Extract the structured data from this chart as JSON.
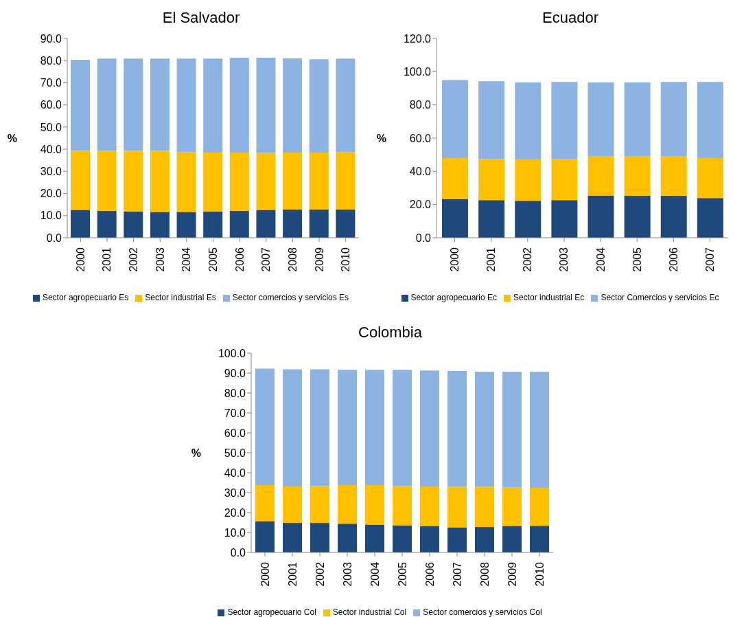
{
  "chart_data": [
    {
      "type": "bar",
      "title": "El Salvador",
      "ylabel": "%",
      "stacked": true,
      "legend": "bottom",
      "categories": [
        "2000",
        "2001",
        "2002",
        "2003",
        "2004",
        "2005",
        "2006",
        "2007",
        "2008",
        "2009",
        "2010"
      ],
      "ylim": [
        0,
        90
      ],
      "yticks": [
        {
          "value": 0,
          "label": "0.0"
        },
        {
          "value": 10,
          "label": "10.0"
        },
        {
          "value": 20,
          "label": "20.0"
        },
        {
          "value": 30,
          "label": "30.0"
        },
        {
          "value": 40,
          "label": "40.0"
        },
        {
          "value": 50,
          "label": "50.0"
        },
        {
          "value": 60,
          "label": "60.0"
        },
        {
          "value": 70,
          "label": "70.0"
        },
        {
          "value": 80,
          "label": "80.0"
        },
        {
          "value": 90,
          "label": "90.0"
        }
      ],
      "series": [
        {
          "name": "Sector agropecuario  Es",
          "color": "#1f497d",
          "values": [
            12.6,
            12.2,
            11.8,
            11.6,
            11.6,
            11.8,
            12.2,
            12.6,
            12.8,
            12.8,
            12.8
          ]
        },
        {
          "name": "Sector industrial Es",
          "color": "#ffc000",
          "values": [
            26.7,
            27.1,
            27.5,
            27.7,
            27.0,
            26.7,
            26.3,
            25.7,
            25.7,
            25.7,
            25.8
          ]
        },
        {
          "name": "Sector comercios y servicios Es",
          "color": "#8db3e2",
          "values": [
            41.1,
            41.6,
            41.6,
            41.6,
            42.3,
            42.4,
            42.8,
            43.0,
            42.5,
            42.1,
            42.3
          ]
        }
      ]
    },
    {
      "type": "bar",
      "title": "Ecuador",
      "ylabel": "%",
      "stacked": true,
      "legend": "bottom",
      "categories": [
        "2000",
        "2001",
        "2002",
        "2003",
        "2004",
        "2005",
        "2006",
        "2007"
      ],
      "ylim": [
        0,
        120
      ],
      "yticks": [
        {
          "value": 0,
          "label": "0.0"
        },
        {
          "value": 20,
          "label": "20.0"
        },
        {
          "value": 40,
          "label": "40.0"
        },
        {
          "value": 60,
          "label": "60.0"
        },
        {
          "value": 80,
          "label": "80.0"
        },
        {
          "value": 100,
          "label": "100.0"
        },
        {
          "value": 120,
          "label": "120.0"
        }
      ],
      "series": [
        {
          "name": "Sector agropecuario  Ec",
          "color": "#1f497d",
          "values": [
            23.2,
            22.7,
            22.2,
            22.7,
            25.5,
            25.3,
            25.3,
            23.9
          ]
        },
        {
          "name": "Sector industrial Ec",
          "color": "#ffc000",
          "values": [
            24.8,
            24.8,
            25.0,
            24.8,
            23.7,
            23.9,
            23.9,
            24.1
          ]
        },
        {
          "name": "Sector Comercios y servicios Ec",
          "color": "#8db3e2",
          "values": [
            47.0,
            46.7,
            46.3,
            46.3,
            44.3,
            44.3,
            44.6,
            45.8
          ]
        }
      ]
    },
    {
      "type": "bar",
      "title": "Colombia",
      "ylabel": "%",
      "stacked": true,
      "legend": "bottom",
      "categories": [
        "2000",
        "2001",
        "2002",
        "2003",
        "2004",
        "2005",
        "2006",
        "2007",
        "2008",
        "2009",
        "2010"
      ],
      "ylim": [
        0,
        100
      ],
      "yticks": [
        {
          "value": 0,
          "label": "0.0"
        },
        {
          "value": 10,
          "label": "10.0"
        },
        {
          "value": 20,
          "label": "20.0"
        },
        {
          "value": 30,
          "label": "30.0"
        },
        {
          "value": 40,
          "label": "40.0"
        },
        {
          "value": 50,
          "label": "50.0"
        },
        {
          "value": 60,
          "label": "60.0"
        },
        {
          "value": 70,
          "label": "70.0"
        },
        {
          "value": 80,
          "label": "80.0"
        },
        {
          "value": 90,
          "label": "90.0"
        },
        {
          "value": 100,
          "label": "100.0"
        }
      ],
      "series": [
        {
          "name": "Sector agropecuario  Col",
          "color": "#1f497d",
          "values": [
            15.7,
            14.8,
            14.8,
            14.4,
            14.0,
            13.6,
            13.1,
            12.6,
            12.8,
            13.1,
            13.4
          ]
        },
        {
          "name": "Sector industrial Col",
          "color": "#ffc000",
          "values": [
            18.1,
            18.3,
            18.6,
            19.4,
            19.8,
            19.8,
            20.0,
            20.4,
            20.2,
            19.6,
            19.0
          ]
        },
        {
          "name": "Sector comercios y servicios Col",
          "color": "#8db3e2",
          "values": [
            58.4,
            58.8,
            58.5,
            57.8,
            57.8,
            58.2,
            58.2,
            58.0,
            57.7,
            58.0,
            58.3
          ]
        }
      ]
    }
  ]
}
